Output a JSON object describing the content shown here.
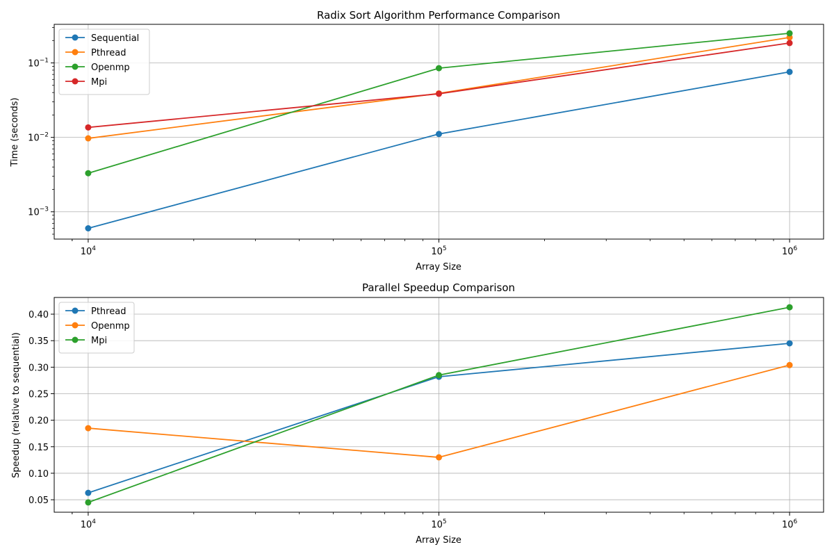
{
  "chart_data": [
    {
      "type": "line",
      "title": "Radix Sort Algorithm Performance Comparison",
      "xlabel": "Array Size",
      "ylabel": "Time (seconds)",
      "xscale": "log",
      "yscale": "log",
      "xlim": [
        8000,
        1250000
      ],
      "ylim": [
        0.00043,
        0.33
      ],
      "x": [
        10000,
        100000,
        1000000
      ],
      "x_ticks": [
        {
          "value": 10000,
          "base": "10",
          "exp": "4"
        },
        {
          "value": 100000,
          "base": "10",
          "exp": "5"
        },
        {
          "value": 1000000,
          "base": "10",
          "exp": "6"
        }
      ],
      "y_ticks": [
        {
          "value": 0.001,
          "base": "10",
          "exp": "−3"
        },
        {
          "value": 0.01,
          "base": "10",
          "exp": "−2"
        },
        {
          "value": 0.1,
          "base": "10",
          "exp": "−1"
        }
      ],
      "grid": true,
      "legend_position": "upper-left",
      "series": [
        {
          "name": "Sequential",
          "color": "#1f77b4",
          "values": [
            0.0006,
            0.0111,
            0.0758
          ]
        },
        {
          "name": "Pthread",
          "color": "#ff7f0e",
          "values": [
            0.0097,
            0.039,
            0.22
          ]
        },
        {
          "name": "Openmp",
          "color": "#2ca02c",
          "values": [
            0.0033,
            0.085,
            0.25
          ]
        },
        {
          "name": "Mpi",
          "color": "#d62728",
          "values": [
            0.0136,
            0.0385,
            0.185
          ]
        }
      ]
    },
    {
      "type": "line",
      "title": "Parallel Speedup Comparison",
      "xlabel": "Array Size",
      "ylabel": "Speedup (relative to sequential)",
      "xscale": "log",
      "yscale": "linear",
      "xlim": [
        8000,
        1250000
      ],
      "ylim": [
        0.0265,
        0.4315
      ],
      "x": [
        10000,
        100000,
        1000000
      ],
      "x_ticks": [
        {
          "value": 10000,
          "base": "10",
          "exp": "4"
        },
        {
          "value": 100000,
          "base": "10",
          "exp": "5"
        },
        {
          "value": 1000000,
          "base": "10",
          "exp": "6"
        }
      ],
      "y_ticks": [
        {
          "value": 0.05,
          "label": "0.05"
        },
        {
          "value": 0.1,
          "label": "0.10"
        },
        {
          "value": 0.15,
          "label": "0.15"
        },
        {
          "value": 0.2,
          "label": "0.20"
        },
        {
          "value": 0.25,
          "label": "0.25"
        },
        {
          "value": 0.3,
          "label": "0.30"
        },
        {
          "value": 0.35,
          "label": "0.35"
        },
        {
          "value": 0.4,
          "label": "0.40"
        }
      ],
      "grid": true,
      "legend_position": "upper-left",
      "series": [
        {
          "name": "Pthread",
          "color": "#1f77b4",
          "values": [
            0.063,
            0.282,
            0.345
          ]
        },
        {
          "name": "Openmp",
          "color": "#ff7f0e",
          "values": [
            0.185,
            0.13,
            0.304
          ]
        },
        {
          "name": "Mpi",
          "color": "#2ca02c",
          "values": [
            0.045,
            0.285,
            0.413
          ]
        }
      ]
    }
  ]
}
